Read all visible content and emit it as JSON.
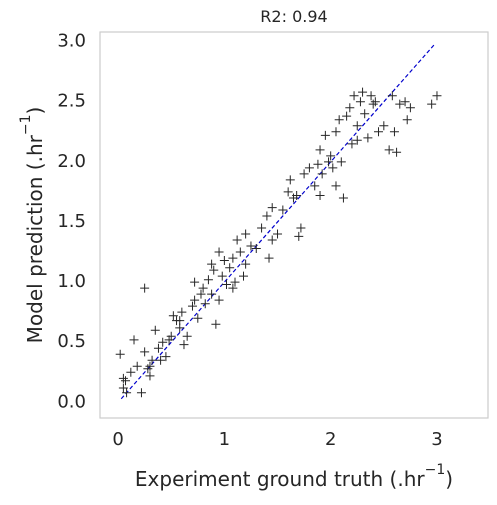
{
  "chart_data": {
    "type": "scatter",
    "title": "R2: 0.94",
    "xlabel": "Experiment ground truth (.hr",
    "xlabel_sup": "−1",
    "xlabel_end": ")",
    "ylabel": "Model prediction (.hr",
    "ylabel_sup": "−1",
    "ylabel_end": ")",
    "xlim": [
      -0.17,
      3.48
    ],
    "ylim": [
      -0.13,
      3.08
    ],
    "xticks": [
      0,
      1,
      2,
      3
    ],
    "yticks": [
      {
        "value": 0,
        "label": "0.0"
      },
      0.5,
      {
        "value": 1,
        "label": "1.0"
      },
      1.5,
      {
        "value": 2,
        "label": "2.0"
      },
      2.5,
      {
        "value": 3,
        "label": "3.0"
      }
    ],
    "grid": false,
    "series": [
      {
        "color": "#262626",
        "marker": "+",
        "x": [
          0.02,
          0.05,
          0.07,
          0.08,
          0.12,
          0.15,
          0.18,
          0.22,
          0.25,
          0.25,
          0.28,
          0.3,
          0.32,
          0.35,
          0.38,
          0.42,
          0.45,
          0.48,
          0.5,
          0.52,
          0.55,
          0.58,
          0.6,
          0.62,
          0.65,
          0.7,
          0.72,
          0.75,
          0.78,
          0.8,
          0.82,
          0.85,
          0.88,
          0.9,
          0.92,
          0.95,
          0.95,
          0.98,
          1.0,
          1.02,
          1.05,
          1.08,
          1.1,
          1.12,
          1.15,
          1.18,
          1.2,
          1.25,
          1.3,
          1.35,
          1.4,
          1.42,
          1.45,
          1.5,
          1.55,
          1.6,
          1.62,
          1.65,
          1.7,
          1.72,
          1.75,
          1.8,
          1.85,
          1.88,
          1.9,
          1.92,
          1.95,
          1.98,
          2.0,
          2.02,
          2.05,
          2.08,
          2.1,
          2.12,
          2.15,
          2.18,
          2.2,
          2.22,
          2.25,
          2.28,
          2.3,
          2.32,
          2.35,
          2.38,
          2.4,
          2.45,
          2.5,
          2.55,
          2.58,
          2.6,
          2.62,
          2.65,
          2.7,
          2.72,
          2.75,
          2.95,
          3.0,
          0.58,
          0.88,
          1.08,
          1.2,
          1.45,
          0.4,
          0.72,
          1.68,
          1.9,
          2.05,
          2.42,
          2.25,
          0.05,
          0.3
        ],
        "values": [
          0.4,
          0.12,
          0.18,
          0.08,
          0.25,
          0.52,
          0.3,
          0.08,
          0.95,
          0.42,
          0.28,
          0.22,
          0.35,
          0.6,
          0.45,
          0.5,
          0.38,
          0.52,
          0.55,
          0.72,
          0.68,
          0.62,
          0.75,
          0.48,
          0.55,
          0.8,
          0.85,
          0.7,
          0.9,
          0.95,
          0.82,
          1.02,
          0.9,
          1.1,
          0.65,
          1.25,
          0.85,
          1.05,
          1.18,
          0.98,
          1.12,
          1.2,
          1.0,
          1.35,
          1.25,
          1.05,
          1.15,
          1.3,
          1.28,
          1.45,
          1.55,
          1.2,
          1.35,
          1.4,
          1.6,
          1.75,
          1.85,
          1.7,
          1.38,
          1.45,
          1.9,
          1.95,
          1.8,
          1.98,
          2.1,
          1.9,
          2.22,
          2.0,
          2.05,
          1.95,
          2.25,
          2.35,
          2.0,
          1.7,
          2.38,
          2.45,
          2.15,
          2.55,
          2.3,
          2.5,
          2.58,
          2.4,
          2.2,
          2.55,
          2.48,
          2.25,
          2.3,
          2.1,
          2.55,
          2.25,
          2.08,
          2.48,
          2.5,
          2.35,
          2.45,
          2.48,
          2.55,
          0.68,
          1.15,
          0.95,
          1.4,
          1.62,
          0.35,
          1.0,
          1.72,
          1.72,
          1.8,
          2.5,
          2.18,
          0.2,
          0.3
        ]
      }
    ],
    "reference_line": {
      "color": "#0000cc",
      "x": [
        0.03,
        2.98
      ],
      "y": [
        0.03,
        2.98
      ]
    }
  }
}
